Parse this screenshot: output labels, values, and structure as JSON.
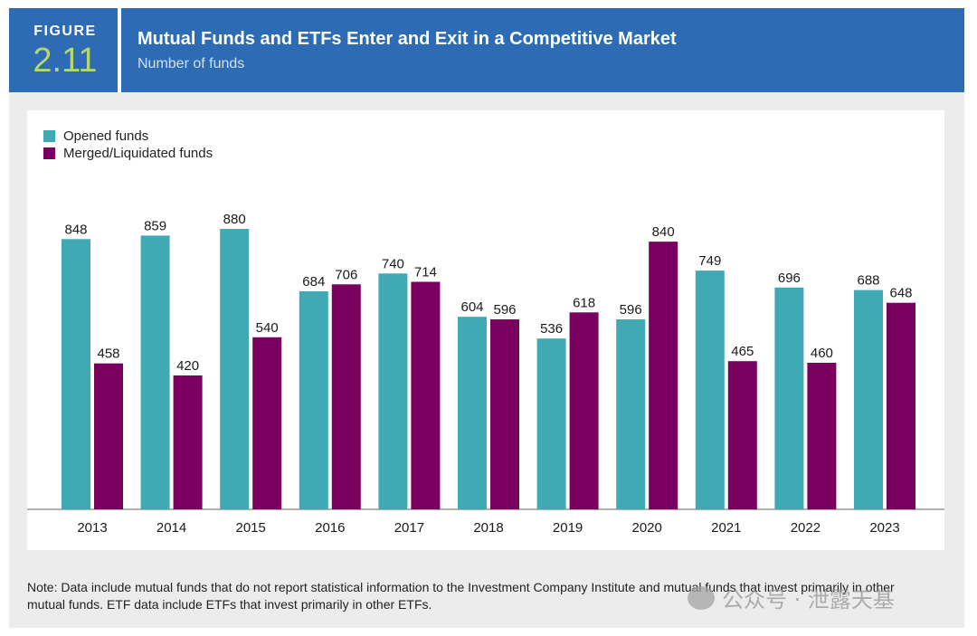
{
  "header": {
    "figure_word": "FIGURE",
    "figure_number": "2.11",
    "title": "Mutual Funds and ETFs Enter and Exit in a Competitive Market",
    "subtitle": "Number of funds"
  },
  "colors": {
    "header_bg": "#2e6bb5",
    "opened": "#3fa9b4",
    "merged": "#7a0060"
  },
  "chart_data": {
    "type": "bar",
    "title": "Mutual Funds and ETFs Enter and Exit in a Competitive Market",
    "ylabel": "Number of funds",
    "xlabel": "",
    "categories": [
      "2013",
      "2014",
      "2015",
      "2016",
      "2017",
      "2018",
      "2019",
      "2020",
      "2021",
      "2022",
      "2023"
    ],
    "series": [
      {
        "name": "Opened funds",
        "values": [
          848,
          859,
          880,
          684,
          740,
          604,
          536,
          596,
          749,
          696,
          688
        ]
      },
      {
        "name": "Merged/Liquidated funds",
        "values": [
          458,
          420,
          540,
          706,
          714,
          596,
          618,
          840,
          465,
          460,
          648
        ]
      }
    ],
    "ylim": [
      0,
      880
    ],
    "legend_position": "top-left",
    "grid": false
  },
  "note": "Note: Data include mutual funds that do not report statistical information to the Investment Company Institute and mutual funds that invest primarily in other mutual funds. ETF data include ETFs that invest primarily in other ETFs.",
  "watermark": "公众号 · 泄露天基"
}
